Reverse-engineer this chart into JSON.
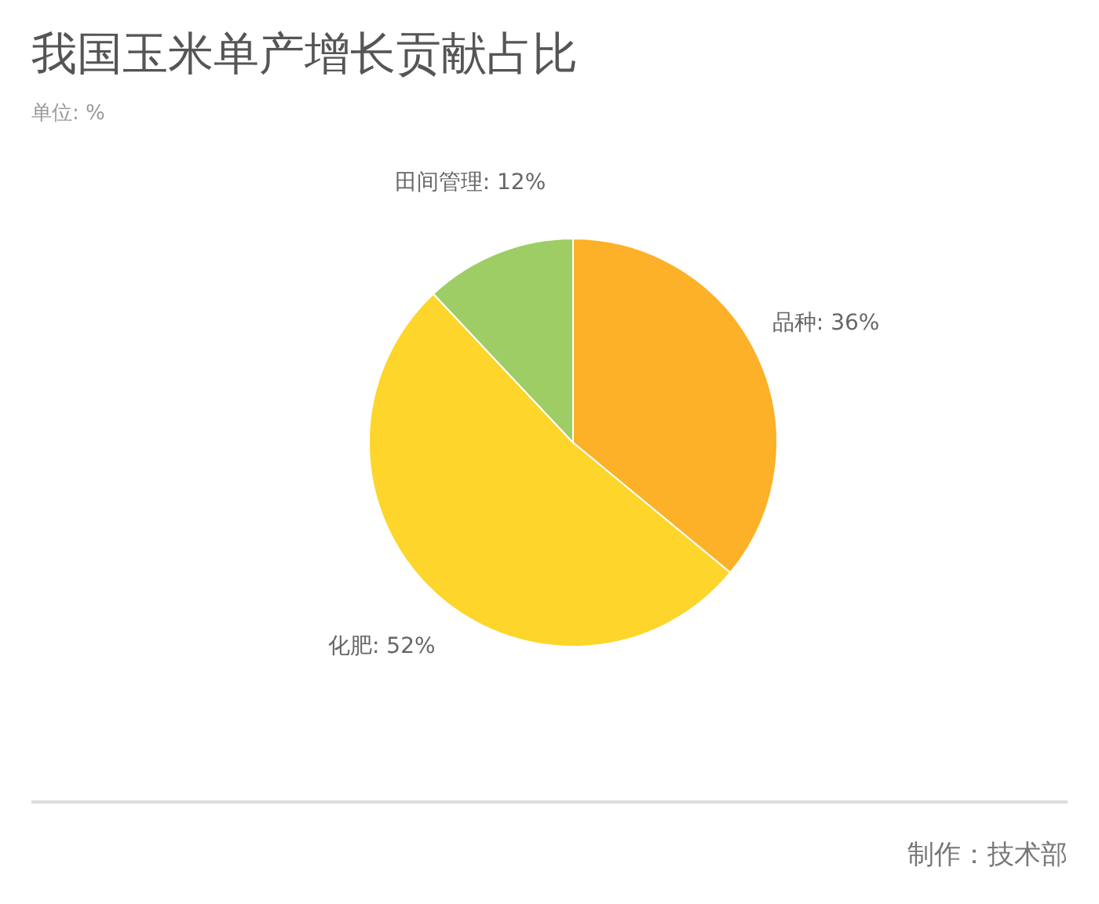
{
  "chart_data": {
    "type": "pie",
    "title": "我国玉米单产增长贡献占比",
    "subtitle": "单位: %",
    "categories": [
      "品种",
      "化肥",
      "田间管理"
    ],
    "values": [
      36,
      52,
      12
    ],
    "colors": [
      "#fdb128",
      "#fdd52b",
      "#9ecd66"
    ],
    "value_labels": [
      "36%",
      "52%",
      "12%"
    ],
    "annotations": [
      "制作：技术部"
    ]
  }
}
